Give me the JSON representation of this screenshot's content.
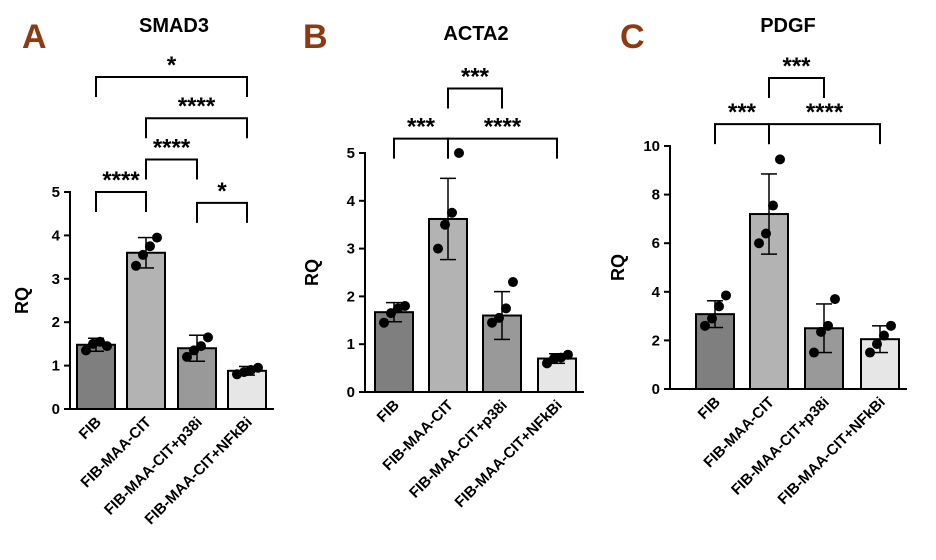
{
  "panel_label_color": "#8b3a12",
  "bar_colors": [
    "#7f7f7f",
    "#b3b3b3",
    "#999999",
    "#e6e6e6"
  ],
  "chart_data": [
    {
      "type": "bar",
      "panel_label": "A",
      "title": "SMAD3",
      "ylabel": "RQ",
      "ylim": [
        0,
        5
      ],
      "yticks": [
        0,
        1,
        2,
        3,
        4,
        5
      ],
      "categories": [
        "FIB",
        "FIB-MAA-CIT",
        "FIB-MAA-CIT+p38i",
        "FIB-MAA-CIT+NFkBi"
      ],
      "values": [
        1.48,
        3.6,
        1.4,
        0.88
      ],
      "errors": [
        0.15,
        0.35,
        0.3,
        0.1
      ],
      "points": [
        [
          1.35,
          1.5,
          1.55,
          1.45
        ],
        [
          3.3,
          3.55,
          3.75,
          3.95
        ],
        [
          1.2,
          1.35,
          1.45,
          1.65
        ],
        [
          0.8,
          0.85,
          0.9,
          0.95
        ]
      ],
      "comparisons": [
        {
          "from": 0,
          "to": 1,
          "label": "****",
          "y": 5.0
        },
        {
          "from": 2,
          "to": 3,
          "label": "*",
          "y": 4.75
        },
        {
          "from": 1,
          "to": 2,
          "label": "****",
          "y": 5.75
        },
        {
          "from": 1,
          "to": 3,
          "label": "****",
          "y": 6.7
        },
        {
          "from": 0,
          "to": 3,
          "label": "*",
          "y": 7.65
        }
      ]
    },
    {
      "type": "bar",
      "panel_label": "B",
      "title": "ACTA2",
      "ylabel": "RQ",
      "ylim": [
        0,
        5
      ],
      "yticks": [
        0,
        1,
        2,
        3,
        4,
        5
      ],
      "categories": [
        "FIB",
        "FIB-MAA-CIT",
        "FIB-MAA-CIT+p38i",
        "FIB-MAA-CIT+NFkBi"
      ],
      "values": [
        1.67,
        3.62,
        1.6,
        0.7
      ],
      "errors": [
        0.2,
        0.85,
        0.5,
        0.1
      ],
      "points": [
        [
          1.45,
          1.65,
          1.75,
          1.8
        ],
        [
          3.0,
          3.5,
          3.75,
          5.0
        ],
        [
          1.45,
          1.55,
          1.75,
          2.3
        ],
        [
          0.6,
          0.7,
          0.72,
          0.78
        ]
      ],
      "comparisons": [
        {
          "from": 0,
          "to": 1,
          "label": "***",
          "y": 5.3
        },
        {
          "from": 1,
          "to": 3,
          "label": "****",
          "y": 5.3
        },
        {
          "from": 1,
          "to": 2,
          "label": "***",
          "y": 6.35
        }
      ]
    },
    {
      "type": "bar",
      "panel_label": "C",
      "title": "PDGF",
      "ylabel": "RQ",
      "ylim": [
        0,
        10
      ],
      "yticks": [
        0,
        2,
        4,
        6,
        8,
        10
      ],
      "categories": [
        "FIB",
        "FIB-MAA-CIT",
        "FIB-MAA-CIT+p38i",
        "FIB-MAA-CIT+NFkBi"
      ],
      "values": [
        3.08,
        7.2,
        2.5,
        2.05
      ],
      "errors": [
        0.55,
        1.65,
        1.0,
        0.55
      ],
      "points": [
        [
          2.6,
          2.9,
          3.4,
          3.85
        ],
        [
          6.0,
          6.4,
          7.55,
          9.45
        ],
        [
          1.5,
          2.35,
          2.6,
          3.7
        ],
        [
          1.5,
          1.85,
          2.2,
          2.6
        ]
      ],
      "comparisons": [
        {
          "from": 0,
          "to": 1,
          "label": "***",
          "y": 10.9
        },
        {
          "from": 1,
          "to": 3,
          "label": "****",
          "y": 10.9
        },
        {
          "from": 1,
          "to": 2,
          "label": "***",
          "y": 12.8
        }
      ]
    }
  ]
}
